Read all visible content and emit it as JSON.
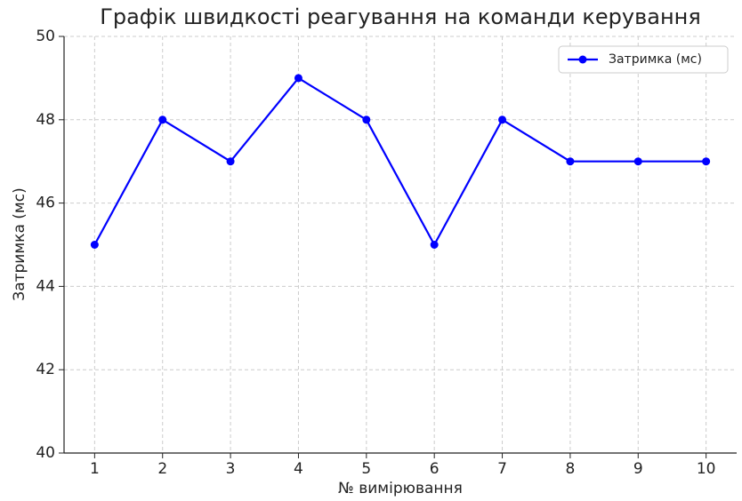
{
  "chart_data": {
    "type": "line",
    "title": "Графік швидкості реагування на команди керування",
    "x_label": "№ вимірювання",
    "y_label": "Затримка (мс)",
    "x": [
      1,
      2,
      3,
      4,
      5,
      6,
      7,
      8,
      9,
      10
    ],
    "series": [
      {
        "name": "Затримка (мс)",
        "color": "#0000ff",
        "values": [
          45,
          48,
          47,
          49,
          48,
          45,
          48,
          47,
          47,
          47
        ]
      }
    ],
    "xlim": [
      0.55,
      10.45
    ],
    "xticks": [
      1,
      2,
      3,
      4,
      5,
      6,
      7,
      8,
      9,
      10
    ],
    "ylim": [
      40,
      50
    ],
    "yticks": [
      40,
      42,
      44,
      46,
      48,
      50
    ],
    "grid": true,
    "legend": "upper right"
  }
}
